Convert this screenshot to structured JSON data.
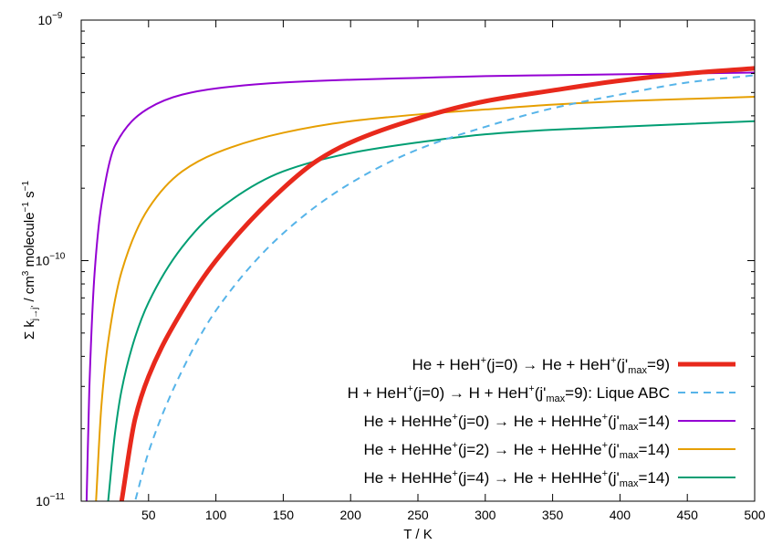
{
  "chart_data": {
    "type": "line",
    "xlabel": "T / K",
    "ylabel": {
      "sigma": "Σ k",
      "sub": "j→j'",
      "units_start": " / cm",
      "units_exp1": "3",
      "units_mid": " molecule",
      "units_exp2": "−1",
      "units_s": " s",
      "units_exp3": "−1"
    },
    "x_range": [
      0,
      500
    ],
    "y_range": [
      1e-11,
      1e-09
    ],
    "y_scale": "log",
    "x_ticks": [
      50,
      100,
      150,
      200,
      250,
      300,
      350,
      400,
      450,
      500
    ],
    "y_ticks": [
      {
        "value": 1e-11,
        "mantissa": "10",
        "exponent": "−11"
      },
      {
        "value": 1e-10,
        "mantissa": "10",
        "exponent": "−10"
      },
      {
        "value": 1e-09,
        "mantissa": "10",
        "exponent": "−9"
      }
    ],
    "legend_position": "bottom-right",
    "series": [
      {
        "name": "He + HeH⁺(j=0) → He + HeH⁺(j'max=9)",
        "label": {
          "a": "He + HeH",
          "a_sup": "+",
          "b": "(j=0) → He + HeH",
          "b_sup": "+",
          "c": "(j'",
          "c_sub": "max",
          "d": "=9)"
        },
        "color": "#e8291c",
        "dash": "solid",
        "width": "thick",
        "x": [
          30,
          40,
          50,
          75,
          100,
          150,
          175,
          200,
          250,
          300,
          350,
          400,
          450,
          500
        ],
        "y": [
          1e-11,
          2.2e-11,
          3.3e-11,
          6.2e-11,
          1e-10,
          2e-10,
          2.6e-10,
          3.1e-10,
          3.9e-10,
          4.6e-10,
          5.1e-10,
          5.6e-10,
          6e-10,
          6.3e-10
        ]
      },
      {
        "name": "H + HeH⁺(j=0) → H + HeH⁺(j'max=9): Lique ABC",
        "label": {
          "a": "H + HeH",
          "a_sup": "+",
          "b": "(j=0) → H + HeH",
          "b_sup": "+",
          "c": "(j'",
          "c_sub": "max",
          "d": "=9): Lique ABC"
        },
        "color": "#56b4e9",
        "dash": "dashed",
        "width": "medium",
        "x": [
          40,
          50,
          75,
          100,
          150,
          200,
          250,
          300,
          350,
          400,
          450,
          500
        ],
        "y": [
          1e-11,
          1.6e-11,
          3.5e-11,
          6.2e-11,
          1.3e-10,
          2.1e-10,
          2.9e-10,
          3.6e-10,
          4.3e-10,
          4.9e-10,
          5.5e-10,
          5.9e-10
        ]
      },
      {
        "name": "He + HeHHe⁺(j=0) → He + HeHHe⁺(j'max=14)",
        "label": {
          "a": "He + HeHHe",
          "a_sup": "+",
          "b": "(j=0) → He + HeHHe",
          "b_sup": "+",
          "c": "(j'",
          "c_sub": "max",
          "d": "=14)"
        },
        "color": "#9400d3",
        "dash": "solid",
        "width": "thin",
        "x": [
          4,
          6,
          10,
          15,
          25,
          50,
          75,
          100,
          150,
          200,
          250,
          300,
          350,
          400,
          450,
          500
        ],
        "y": [
          1e-11,
          2.9e-11,
          9e-11,
          1.7e-10,
          3e-10,
          4.3e-10,
          4.9e-10,
          5.2e-10,
          5.5e-10,
          5.65e-10,
          5.75e-10,
          5.85e-10,
          5.9e-10,
          5.95e-10,
          6e-10,
          6.05e-10
        ]
      },
      {
        "name": "He + HeHHe⁺(j=2) → He + HeHHe⁺(j'max=14)",
        "label": {
          "a": "He + HeHHe",
          "a_sup": "+",
          "b": "(j=2) → He + HeHHe",
          "b_sup": "+",
          "c": "(j'",
          "c_sub": "max",
          "d": "=14)"
        },
        "color": "#e69f00",
        "dash": "solid",
        "width": "thin",
        "x": [
          11,
          15,
          20,
          30,
          50,
          75,
          100,
          150,
          200,
          250,
          300,
          350,
          400,
          450,
          500
        ],
        "y": [
          1e-11,
          2.5e-11,
          4.6e-11,
          9e-11,
          1.65e-10,
          2.35e-10,
          2.8e-10,
          3.4e-10,
          3.8e-10,
          4.05e-10,
          4.25e-10,
          4.45e-10,
          4.6e-10,
          4.7e-10,
          4.8e-10
        ]
      },
      {
        "name": "He + HeHHe⁺(j=4) → He + HeHHe⁺(j'max=14)",
        "label": {
          "a": "He + HeHHe",
          "a_sup": "+",
          "b": "(j=4) → He + HeHHe",
          "b_sup": "+",
          "c": "(j'",
          "c_sub": "max",
          "d": "=14)"
        },
        "color": "#009e73",
        "dash": "solid",
        "width": "thin",
        "x": [
          20,
          25,
          30,
          40,
          50,
          75,
          100,
          150,
          200,
          250,
          300,
          350,
          400,
          450,
          500
        ],
        "y": [
          1e-11,
          1.9e-11,
          2.9e-11,
          4.8e-11,
          6.7e-11,
          1.14e-10,
          1.6e-10,
          2.35e-10,
          2.8e-10,
          3.1e-10,
          3.35e-10,
          3.5e-10,
          3.6e-10,
          3.7e-10,
          3.8e-10
        ]
      }
    ]
  }
}
